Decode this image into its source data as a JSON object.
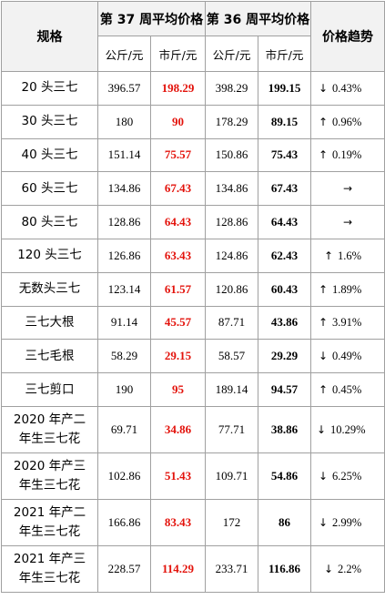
{
  "headers": {
    "spec": "规格",
    "week37": "第 37 周平均价格",
    "week36": "第 36 周平均价格",
    "trend": "价格趋势",
    "gongjin": "公斤/元",
    "shijin": "市斤/元"
  },
  "rows": [
    {
      "spec": "20 头三七",
      "w37_gongjin": "396.57",
      "w37_shijin": "198.29",
      "w36_gongjin": "398.29",
      "w36_shijin": "199.15",
      "trend_dir": "down",
      "trend_pct": "0.43%"
    },
    {
      "spec": "30 头三七",
      "w37_gongjin": "180",
      "w37_shijin": "90",
      "w36_gongjin": "178.29",
      "w36_shijin": "89.15",
      "trend_dir": "up",
      "trend_pct": "0.96%"
    },
    {
      "spec": "40 头三七",
      "w37_gongjin": "151.14",
      "w37_shijin": "75.57",
      "w36_gongjin": "150.86",
      "w36_shijin": "75.43",
      "trend_dir": "up",
      "trend_pct": "0.19%"
    },
    {
      "spec": "60 头三七",
      "w37_gongjin": "134.86",
      "w37_shijin": "67.43",
      "w36_gongjin": "134.86",
      "w36_shijin": "67.43",
      "trend_dir": "flat",
      "trend_pct": ""
    },
    {
      "spec": "80 头三七",
      "w37_gongjin": "128.86",
      "w37_shijin": "64.43",
      "w36_gongjin": "128.86",
      "w36_shijin": "64.43",
      "trend_dir": "flat",
      "trend_pct": ""
    },
    {
      "spec": "120 头三七",
      "w37_gongjin": "126.86",
      "w37_shijin": "63.43",
      "w36_gongjin": "124.86",
      "w36_shijin": "62.43",
      "trend_dir": "up",
      "trend_pct": "1.6%"
    },
    {
      "spec": "无数头三七",
      "w37_gongjin": "123.14",
      "w37_shijin": "61.57",
      "w36_gongjin": "120.86",
      "w36_shijin": "60.43",
      "trend_dir": "up",
      "trend_pct": "1.89%"
    },
    {
      "spec": "三七大根",
      "w37_gongjin": "91.14",
      "w37_shijin": "45.57",
      "w36_gongjin": "87.71",
      "w36_shijin": "43.86",
      "trend_dir": "up",
      "trend_pct": "3.91%"
    },
    {
      "spec": "三七毛根",
      "w37_gongjin": "58.29",
      "w37_shijin": "29.15",
      "w36_gongjin": "58.57",
      "w36_shijin": "29.29",
      "trend_dir": "down",
      "trend_pct": "0.49%"
    },
    {
      "spec": "三七剪口",
      "w37_gongjin": "190",
      "w37_shijin": "95",
      "w36_gongjin": "189.14",
      "w36_shijin": "94.57",
      "trend_dir": "up",
      "trend_pct": "0.45%"
    },
    {
      "spec": "2020 年产二年生三七花",
      "spec_line1": "2020 年产二",
      "spec_line2": "年生三七花",
      "w37_gongjin": "69.71",
      "w37_shijin": "34.86",
      "w36_gongjin": "77.71",
      "w36_shijin": "38.86",
      "trend_dir": "down",
      "trend_pct": "10.29%"
    },
    {
      "spec": "2020 年产三年生三七花",
      "spec_line1": "2020 年产三",
      "spec_line2": "年生三七花",
      "w37_gongjin": "102.86",
      "w37_shijin": "51.43",
      "w36_gongjin": "109.71",
      "w36_shijin": "54.86",
      "trend_dir": "down",
      "trend_pct": "6.25%"
    },
    {
      "spec": "2021 年产二年生三七花",
      "spec_line1": "2021 年产二",
      "spec_line2": "年生三七花",
      "w37_gongjin": "166.86",
      "w37_shijin": "83.43",
      "w36_gongjin": "172",
      "w36_shijin": "86",
      "trend_dir": "down",
      "trend_pct": "2.99%"
    },
    {
      "spec": "2021 年产三年生三七花",
      "spec_line1": "2021 年产三",
      "spec_line2": "年生三七花",
      "w37_gongjin": "228.57",
      "w37_shijin": "114.29",
      "w36_gongjin": "233.71",
      "w36_shijin": "116.86",
      "trend_dir": "down",
      "trend_pct": "2.2%"
    }
  ],
  "icons": {
    "up": "up-arrow-icon",
    "down": "down-arrow-icon",
    "flat": "right-arrow-icon"
  },
  "colors": {
    "highlight": "#e3120b",
    "header_bg": "#f2f2f2",
    "border": "#a0a0a0"
  }
}
